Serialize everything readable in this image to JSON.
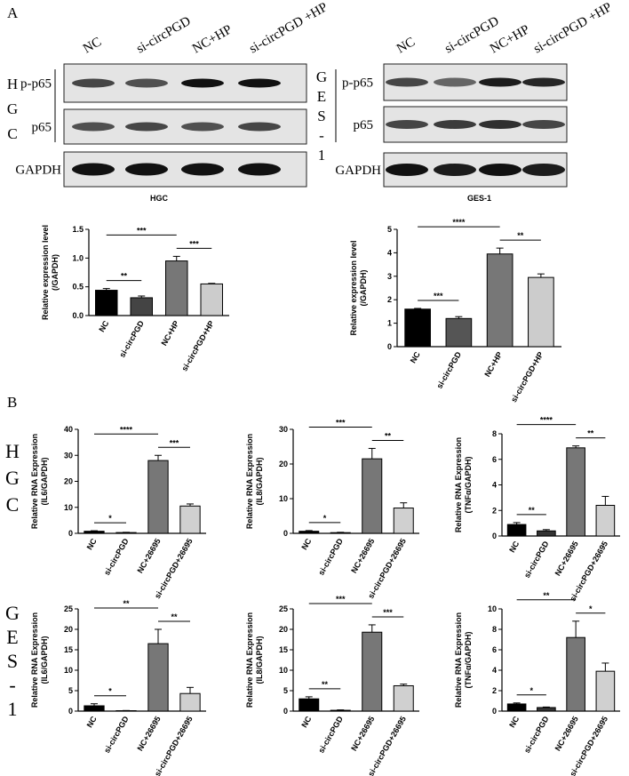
{
  "panel_labels": [
    "A",
    "B"
  ],
  "blots": [
    {
      "cell_line": [
        "H",
        "G",
        "C"
      ],
      "lanes": [
        "NC",
        "si-circPGD",
        "NC+HP",
        "si-circPGD +HP"
      ],
      "rows": [
        "p-p65",
        "p65",
        "GAPDH"
      ]
    },
    {
      "cell_line": [
        "G",
        "E",
        "S",
        "-",
        "1"
      ],
      "lanes": [
        "NC",
        "si-circPGD",
        "NC+HP",
        "si-circPGD +HP"
      ],
      "rows": [
        "p-p65",
        "p65",
        "GAPDH"
      ]
    }
  ],
  "side_labels": [
    [
      "H",
      "G",
      "C"
    ],
    [
      "G",
      "E",
      "S",
      "-",
      "1"
    ]
  ],
  "chart_data": [
    {
      "type": "bar",
      "title": "HGC",
      "y_label": [
        "Relative expression level",
        "(/GAPDH)"
      ],
      "categories": [
        "NC",
        "si-circPGD",
        "NC+HP",
        "si-circPGD+HP"
      ],
      "values": [
        0.44,
        0.31,
        0.95,
        0.55
      ],
      "errors": [
        0.03,
        0.03,
        0.08,
        0.01
      ],
      "colors": [
        "#000000",
        "#444444",
        "#777777",
        "#cccccc"
      ],
      "ylim": [
        0,
        1.5
      ],
      "yticks": [
        {
          "value": 0,
          "label": "0.0"
        },
        {
          "value": 0.5,
          "label": "0.5"
        },
        {
          "value": 1,
          "label": "1.0"
        },
        {
          "value": 1.5,
          "label": "1.5"
        }
      ],
      "annotations": [
        {
          "text": "**",
          "between": [
            0,
            1
          ]
        },
        {
          "text": "***",
          "between": [
            2,
            3
          ]
        },
        {
          "text": "***",
          "between": [
            0,
            2
          ]
        }
      ]
    },
    {
      "type": "bar",
      "title": "GES-1",
      "y_label": [
        "Relative expression level",
        "(/GAPDH)"
      ],
      "categories": [
        "NC",
        "si-circPGD",
        "NC+HP",
        "si-circPGD+HP"
      ],
      "values": [
        1.6,
        1.2,
        3.95,
        2.95
      ],
      "errors": [
        0.03,
        0.08,
        0.25,
        0.15
      ],
      "colors": [
        "#000000",
        "#555555",
        "#777777",
        "#cccccc"
      ],
      "ylim": [
        0,
        5
      ],
      "yticks": [
        0,
        1,
        2,
        3,
        4,
        5
      ],
      "annotations": [
        {
          "text": "***",
          "between": [
            0,
            1
          ]
        },
        {
          "text": "**",
          "between": [
            2,
            3
          ]
        },
        {
          "text": "****",
          "between": [
            0,
            2
          ]
        }
      ]
    },
    {
      "type": "bar",
      "y_label": [
        "Relative RNA Expression",
        "(IL6/GAPDH)"
      ],
      "categories": [
        "NC",
        "si-circPGD",
        "NC+26695",
        "si-circPGD+26695"
      ],
      "values": [
        0.8,
        0.3,
        28,
        10.5
      ],
      "errors": [
        0.2,
        0.1,
        2,
        0.8
      ],
      "colors": [
        "#000000",
        "#333333",
        "#777777",
        "#d0d0d0"
      ],
      "ylim": [
        0,
        40
      ],
      "yticks": [
        0,
        10,
        20,
        30,
        40
      ],
      "annotations": [
        {
          "text": "*",
          "between": [
            0,
            1
          ]
        },
        {
          "text": "***",
          "between": [
            2,
            3
          ]
        },
        {
          "text": "****",
          "between": [
            0,
            2
          ]
        }
      ]
    },
    {
      "type": "bar",
      "y_label": [
        "Relative RNA Expression",
        "(IL8/GAPDH)"
      ],
      "categories": [
        "NC",
        "si-circPGD",
        "NC+26695",
        "si-circPGD+26695"
      ],
      "values": [
        0.6,
        0.2,
        21.5,
        7.3
      ],
      "errors": [
        0.2,
        0.1,
        3,
        1.5
      ],
      "colors": [
        "#000000",
        "#333333",
        "#777777",
        "#d0d0d0"
      ],
      "ylim": [
        0,
        30
      ],
      "yticks": [
        0,
        10,
        20,
        30
      ],
      "annotations": [
        {
          "text": "*",
          "between": [
            0,
            1
          ]
        },
        {
          "text": "**",
          "between": [
            2,
            3
          ]
        },
        {
          "text": "***",
          "between": [
            0,
            2
          ]
        }
      ]
    },
    {
      "type": "bar",
      "y_label": [
        "Relative RNA Expression",
        "(TNFα/GAPDH)"
      ],
      "categories": [
        "NC",
        "si-circPGD",
        "NC+26695",
        "si-circPGD+26695"
      ],
      "values": [
        0.9,
        0.4,
        6.9,
        2.4
      ],
      "errors": [
        0.15,
        0.1,
        0.15,
        0.7
      ],
      "colors": [
        "#000000",
        "#333333",
        "#777777",
        "#d0d0d0"
      ],
      "ylim": [
        0,
        8
      ],
      "yticks": [
        0,
        2,
        4,
        6,
        8
      ],
      "annotations": [
        {
          "text": "**",
          "between": [
            0,
            1
          ]
        },
        {
          "text": "**",
          "between": [
            2,
            3
          ]
        },
        {
          "text": "****",
          "between": [
            0,
            2
          ]
        }
      ]
    },
    {
      "type": "bar",
      "y_label": [
        "Relative RNA Expression",
        "(IL6/GAPDH)"
      ],
      "categories": [
        "NC",
        "si-circPGD",
        "NC+26695",
        "si-circPGD+26695"
      ],
      "values": [
        1.3,
        0.1,
        16.5,
        4.3
      ],
      "errors": [
        0.5,
        0.05,
        3.5,
        1.5
      ],
      "colors": [
        "#000000",
        "#333333",
        "#777777",
        "#d0d0d0"
      ],
      "ylim": [
        0,
        25
      ],
      "yticks": [
        0,
        5,
        10,
        15,
        20,
        25
      ],
      "annotations": [
        {
          "text": "*",
          "between": [
            0,
            1
          ]
        },
        {
          "text": "**",
          "between": [
            2,
            3
          ]
        },
        {
          "text": "**",
          "between": [
            0,
            2
          ]
        }
      ]
    },
    {
      "type": "bar",
      "y_label": [
        "Relative RNA Expression",
        "(IL8/GAPDH)"
      ],
      "categories": [
        "NC",
        "si-circPGD",
        "NC+26695",
        "si-circPGD+26695"
      ],
      "values": [
        3,
        0.2,
        19.3,
        6.2
      ],
      "errors": [
        0.5,
        0.1,
        1.8,
        0.4
      ],
      "colors": [
        "#000000",
        "#333333",
        "#777777",
        "#d0d0d0"
      ],
      "ylim": [
        0,
        25
      ],
      "yticks": [
        0,
        5,
        10,
        15,
        20,
        25
      ],
      "annotations": [
        {
          "text": "**",
          "between": [
            0,
            1
          ]
        },
        {
          "text": "***",
          "between": [
            2,
            3
          ]
        },
        {
          "text": "***",
          "between": [
            0,
            2
          ]
        }
      ]
    },
    {
      "type": "bar",
      "y_label": [
        "Relative RNA Expression",
        "(TNFα/GAPDH)"
      ],
      "categories": [
        "NC",
        "si-circPGD",
        "NC+26695",
        "si-circPGD+26695"
      ],
      "values": [
        0.7,
        0.35,
        7.2,
        3.9
      ],
      "errors": [
        0.1,
        0.05,
        1.6,
        0.8
      ],
      "colors": [
        "#000000",
        "#333333",
        "#777777",
        "#d0d0d0"
      ],
      "ylim": [
        0,
        10
      ],
      "yticks": [
        0,
        2,
        4,
        6,
        8,
        10
      ],
      "annotations": [
        {
          "text": "*",
          "between": [
            0,
            1
          ]
        },
        {
          "text": "*",
          "between": [
            2,
            3
          ]
        },
        {
          "text": "**",
          "between": [
            0,
            2
          ]
        }
      ]
    }
  ]
}
